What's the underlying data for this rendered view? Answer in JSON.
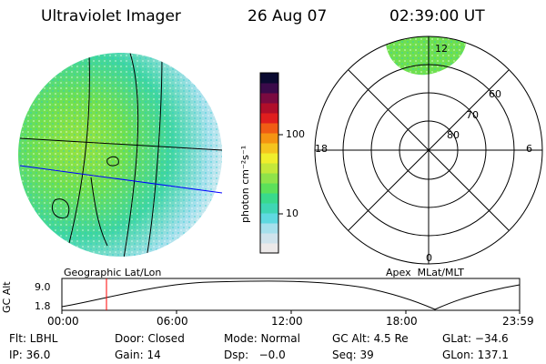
{
  "header": {
    "title": "Ultraviolet Imager",
    "date": "26 Aug 07",
    "time": "02:39:00 UT"
  },
  "left_panel": {
    "label": "Geographic Lat/Lon"
  },
  "right_panel": {
    "label": "Apex  MLat/MLT",
    "mlt_labels": {
      "top": "12",
      "left": "18",
      "right": "6",
      "bottom": "0"
    },
    "lat_labels": [
      "60",
      "70",
      "80"
    ]
  },
  "colorbar": {
    "unit_label": "photon cm⁻²s⁻¹",
    "tick_100": "100",
    "tick_10": "10",
    "colors": [
      "#ece9e9",
      "#cfe3ec",
      "#a6e0ec",
      "#5fd9e0",
      "#3fd6b4",
      "#39d98c",
      "#5ce05a",
      "#8fe34a",
      "#c4e83a",
      "#f0ee2c",
      "#f5c41e",
      "#f59412",
      "#f05c14",
      "#e01e1e",
      "#b00e2a",
      "#7a0a40",
      "#3a0a4a",
      "#0a0a30"
    ]
  },
  "timeline": {
    "axis_label": "GC Alt",
    "y_top": "9.0",
    "y_bottom": "1.8",
    "ticks": [
      "00:00",
      "06:00",
      "12:00",
      "18:00",
      "23:59"
    ],
    "marker_color": "#ff0000"
  },
  "footer": {
    "row1": {
      "flt": "Flt: LBHL",
      "door": "Door: Closed",
      "mode": "Mode: Normal",
      "gcalt": "GC Alt: 4.5 Re",
      "glat": "GLat: −34.6"
    },
    "row2": {
      "ip": "IP: 36.0",
      "gain": "Gain: 14",
      "dsp": "Dsp:   −0.0",
      "seq": "Seq: 39",
      "glon": "GLon: 137.1"
    }
  }
}
